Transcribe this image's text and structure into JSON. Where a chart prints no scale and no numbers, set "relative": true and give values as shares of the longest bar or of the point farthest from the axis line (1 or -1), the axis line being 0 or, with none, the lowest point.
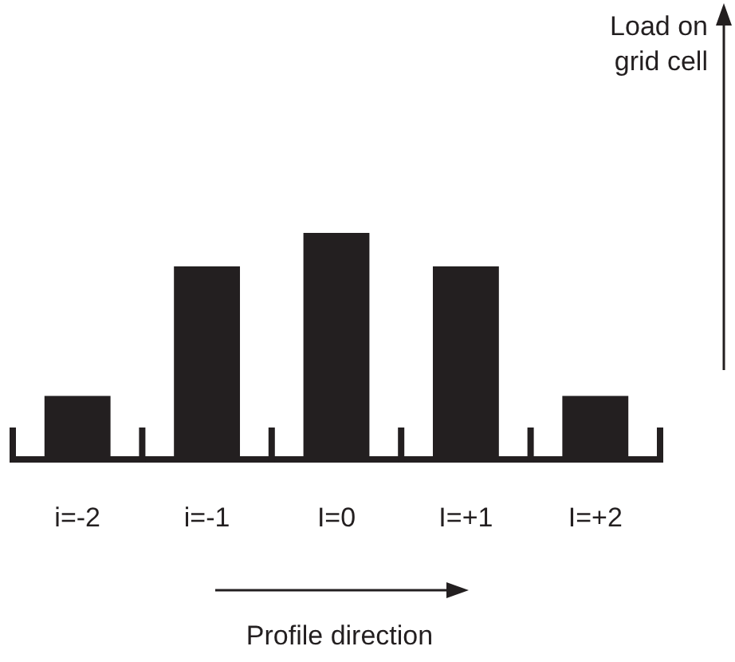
{
  "chart_data": {
    "type": "bar",
    "relative": true,
    "categories": [
      "i=-2",
      "i=-1",
      "I=0",
      "I=+1",
      "I=+2"
    ],
    "values": [
      0.27,
      0.85,
      1,
      0.85,
      0.27
    ],
    "color": "#231f20",
    "xlabel": "Profile direction",
    "annotations": [
      "Load on\ngrid cell"
    ]
  }
}
